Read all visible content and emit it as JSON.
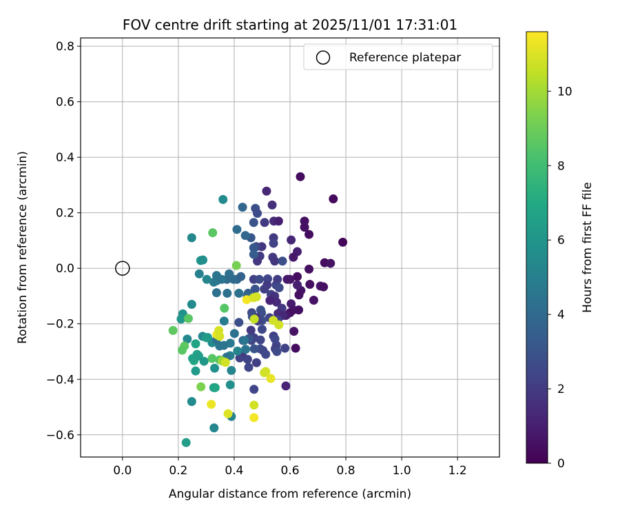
{
  "chart_data": {
    "type": "scatter",
    "title": "FOV centre drift starting at 2025/11/01 17:31:01",
    "xlabel": "Angular distance from reference (arcmin)",
    "ylabel": "Rotation from reference (arcmin)",
    "xlim": [
      -0.15,
      1.35
    ],
    "ylim": [
      -0.68,
      0.83
    ],
    "xticks": [
      0.0,
      0.2,
      0.4,
      0.6,
      0.8,
      1.0,
      1.2
    ],
    "xtick_labels": [
      "0.0",
      "0.2",
      "0.4",
      "0.6",
      "0.8",
      "1.0",
      "1.2"
    ],
    "yticks": [
      -0.6,
      -0.4,
      -0.2,
      0.0,
      0.2,
      0.4,
      0.6,
      0.8
    ],
    "ytick_labels": [
      "−0.6",
      "−0.4",
      "−0.2",
      "0.0",
      "0.2",
      "0.4",
      "0.6",
      "0.8"
    ],
    "grid": true,
    "legend": {
      "position": "top-right",
      "label": "Reference platepar"
    },
    "reference": {
      "x": 0.0,
      "y": 0.0
    },
    "colorbar": {
      "label": "Hours from first FF file",
      "range": [
        0,
        11.6
      ],
      "ticks": [
        0,
        2,
        4,
        6,
        8,
        10
      ],
      "tick_labels": [
        "0",
        "2",
        "4",
        "6",
        "8",
        "10"
      ],
      "colormap": "viridis"
    },
    "points": [
      [
        0.637,
        0.33,
        0.4
      ],
      [
        0.755,
        0.25,
        0.3
      ],
      [
        0.652,
        0.17,
        0.5
      ],
      [
        0.652,
        0.148,
        0.5
      ],
      [
        0.668,
        0.122,
        0.4
      ],
      [
        0.789,
        0.094,
        0.2
      ],
      [
        0.724,
        0.02,
        0.4
      ],
      [
        0.745,
        0.018,
        0.6
      ],
      [
        0.668,
        -0.003,
        0.5
      ],
      [
        0.626,
        0.06,
        1.0
      ],
      [
        0.612,
        0.04,
        0.8
      ],
      [
        0.604,
        0.102,
        1.3
      ],
      [
        0.709,
        -0.064,
        0.7
      ],
      [
        0.72,
        -0.067,
        0.5
      ],
      [
        0.671,
        -0.058,
        0.5
      ],
      [
        0.685,
        -0.115,
        0.6
      ],
      [
        0.639,
        -0.08,
        0.6
      ],
      [
        0.632,
        -0.096,
        0.5
      ],
      [
        0.626,
        -0.03,
        0.4
      ],
      [
        0.6,
        -0.04,
        0.7
      ],
      [
        0.626,
        -0.06,
        1.0
      ],
      [
        0.59,
        -0.04,
        0.8
      ],
      [
        0.604,
        -0.128,
        0.9
      ],
      [
        0.612,
        -0.15,
        0.7
      ],
      [
        0.631,
        -0.15,
        0.5
      ],
      [
        0.6,
        -0.16,
        0.5
      ],
      [
        0.585,
        -0.17,
        0.8
      ],
      [
        0.62,
        -0.288,
        0.4
      ],
      [
        0.614,
        -0.227,
        0.6
      ],
      [
        0.585,
        -0.424,
        1.2
      ],
      [
        0.516,
        0.278,
        1.3
      ],
      [
        0.536,
        0.228,
        1.6
      ],
      [
        0.542,
        0.17,
        1.4
      ],
      [
        0.559,
        0.17,
        1.0
      ],
      [
        0.509,
        0.165,
        2.0
      ],
      [
        0.541,
        0.11,
        2.0
      ],
      [
        0.541,
        0.09,
        2.3
      ],
      [
        0.499,
        0.078,
        1.8
      ],
      [
        0.479,
        0.078,
        2.4
      ],
      [
        0.492,
        0.044,
        2.0
      ],
      [
        0.483,
        0.026,
        1.9
      ],
      [
        0.538,
        0.04,
        2.0
      ],
      [
        0.545,
        0.026,
        1.8
      ],
      [
        0.573,
        0.026,
        2.8
      ],
      [
        0.52,
        -0.038,
        2.4
      ],
      [
        0.518,
        -0.06,
        2.0
      ],
      [
        0.508,
        -0.075,
        2.1
      ],
      [
        0.532,
        -0.094,
        2.2
      ],
      [
        0.55,
        -0.06,
        2.4
      ],
      [
        0.555,
        -0.04,
        2.1
      ],
      [
        0.561,
        -0.07,
        2.6
      ],
      [
        0.545,
        -0.1,
        1.7
      ],
      [
        0.552,
        -0.122,
        1.4
      ],
      [
        0.528,
        -0.116,
        1.2
      ],
      [
        0.571,
        -0.144,
        1.9
      ],
      [
        0.557,
        -0.163,
        1.5
      ],
      [
        0.575,
        -0.17,
        1.3
      ],
      [
        0.556,
        -0.186,
        2.3
      ],
      [
        0.527,
        -0.178,
        2.3
      ],
      [
        0.495,
        -0.15,
        3.0
      ],
      [
        0.498,
        -0.161,
        2.8
      ],
      [
        0.5,
        -0.188,
        2.7
      ],
      [
        0.5,
        -0.22,
        2.5
      ],
      [
        0.478,
        -0.178,
        1.5
      ],
      [
        0.485,
        -0.19,
        2.2
      ],
      [
        0.463,
        -0.16,
        2.6
      ],
      [
        0.465,
        -0.174,
        2.9
      ],
      [
        0.47,
        -0.18,
        2.2
      ],
      [
        0.46,
        -0.223,
        2.0
      ],
      [
        0.471,
        -0.25,
        2.2
      ],
      [
        0.462,
        -0.26,
        2.4
      ],
      [
        0.494,
        -0.258,
        2.4
      ],
      [
        0.541,
        -0.244,
        2.1
      ],
      [
        0.546,
        -0.254,
        2.5
      ],
      [
        0.551,
        -0.277,
        2.4
      ],
      [
        0.547,
        -0.29,
        2.2
      ],
      [
        0.553,
        -0.3,
        2.6
      ],
      [
        0.582,
        -0.288,
        2.3
      ],
      [
        0.513,
        -0.31,
        2.5
      ],
      [
        0.493,
        -0.29,
        2.7
      ],
      [
        0.503,
        -0.296,
        2.5
      ],
      [
        0.472,
        -0.29,
        3.0
      ],
      [
        0.48,
        -0.34,
        2.1
      ],
      [
        0.448,
        -0.328,
        2.3
      ],
      [
        0.428,
        -0.31,
        1.9
      ],
      [
        0.42,
        -0.323,
        2.2
      ],
      [
        0.452,
        -0.357,
        2.4
      ],
      [
        0.471,
        -0.436,
        2.4
      ],
      [
        0.453,
        -0.253,
        3.1
      ],
      [
        0.417,
        -0.195,
        2.8
      ],
      [
        0.432,
        -0.26,
        3.0
      ],
      [
        0.47,
        -0.04,
        2.2
      ],
      [
        0.49,
        -0.04,
        2.6
      ],
      [
        0.475,
        -0.075,
        2.9
      ],
      [
        0.46,
        0.11,
        3.2
      ],
      [
        0.47,
        0.165,
        3.0
      ],
      [
        0.476,
        0.216,
        2.8
      ],
      [
        0.483,
        0.198,
        2.7
      ],
      [
        0.47,
        0.074,
        3.2
      ],
      [
        0.47,
        0.05,
        3.4
      ],
      [
        0.43,
        0.22,
        3.8
      ],
      [
        0.44,
        0.118,
        3.8
      ],
      [
        0.41,
        0.14,
        4.1
      ],
      [
        0.45,
        -0.09,
        3.6
      ],
      [
        0.447,
        -0.1,
        3.8
      ],
      [
        0.417,
        -0.09,
        4.3
      ],
      [
        0.41,
        -0.04,
        3.9
      ],
      [
        0.398,
        -0.04,
        4.0
      ],
      [
        0.424,
        -0.03,
        3.6
      ],
      [
        0.382,
        -0.02,
        4.2
      ],
      [
        0.374,
        -0.04,
        4.1
      ],
      [
        0.375,
        -0.09,
        4.3
      ],
      [
        0.355,
        -0.04,
        4.5
      ],
      [
        0.337,
        -0.045,
        4.3
      ],
      [
        0.327,
        -0.05,
        4.7
      ],
      [
        0.337,
        -0.026,
        4.4
      ],
      [
        0.302,
        -0.04,
        5.3
      ],
      [
        0.275,
        -0.02,
        5.0
      ],
      [
        0.337,
        -0.088,
        4.3
      ],
      [
        0.36,
        0.248,
        5.5
      ],
      [
        0.248,
        0.11,
        5.4
      ],
      [
        0.28,
        0.028,
        6.0
      ],
      [
        0.288,
        0.03,
        5.7
      ],
      [
        0.364,
        -0.19,
        4.8
      ],
      [
        0.401,
        -0.235,
        4.3
      ],
      [
        0.386,
        -0.27,
        4.7
      ],
      [
        0.363,
        -0.278,
        4.4
      ],
      [
        0.348,
        -0.28,
        4.5
      ],
      [
        0.321,
        -0.268,
        5.5
      ],
      [
        0.337,
        -0.257,
        4.3
      ],
      [
        0.305,
        -0.249,
        6.2
      ],
      [
        0.287,
        -0.245,
        5.4
      ],
      [
        0.436,
        -0.26,
        4.5
      ],
      [
        0.441,
        -0.292,
        4.5
      ],
      [
        0.412,
        -0.298,
        5.2
      ],
      [
        0.385,
        -0.315,
        5.0
      ],
      [
        0.373,
        -0.32,
        4.3
      ],
      [
        0.33,
        -0.36,
        5.8
      ],
      [
        0.39,
        -0.368,
        5.2
      ],
      [
        0.386,
        -0.42,
        5.7
      ],
      [
        0.39,
        -0.534,
        5.2
      ],
      [
        0.328,
        -0.575,
        5.3
      ],
      [
        0.228,
        -0.628,
        6.4
      ],
      [
        0.248,
        -0.48,
        5.5
      ],
      [
        0.256,
        -0.333,
        7.0
      ],
      [
        0.251,
        -0.325,
        6.6
      ],
      [
        0.262,
        -0.37,
        6.3
      ],
      [
        0.262,
        -0.272,
        6.7
      ],
      [
        0.267,
        -0.31,
        6.7
      ],
      [
        0.273,
        -0.316,
        6.4
      ],
      [
        0.232,
        -0.255,
        5.4
      ],
      [
        0.216,
        -0.164,
        5.8
      ],
      [
        0.21,
        -0.183,
        6.1
      ],
      [
        0.248,
        -0.13,
        5.5
      ],
      [
        0.292,
        -0.335,
        6.1
      ],
      [
        0.327,
        -0.43,
        6.3
      ],
      [
        0.332,
        -0.43,
        6.8
      ],
      [
        0.301,
        -0.25,
        6.3
      ],
      [
        0.236,
        -0.181,
        8.6
      ],
      [
        0.222,
        -0.28,
        8.7
      ],
      [
        0.214,
        -0.295,
        8.6
      ],
      [
        0.181,
        -0.224,
        8.7
      ],
      [
        0.281,
        -0.427,
        9.3
      ],
      [
        0.321,
        -0.325,
        8.5
      ],
      [
        0.348,
        -0.33,
        8.5
      ],
      [
        0.357,
        -0.334,
        9.9
      ],
      [
        0.365,
        -0.144,
        8.5
      ],
      [
        0.323,
        0.128,
        8.6
      ],
      [
        0.408,
        0.01,
        9.2
      ],
      [
        0.369,
        -0.339,
        10.8
      ],
      [
        0.318,
        -0.49,
        11.3
      ],
      [
        0.378,
        -0.524,
        11.0
      ],
      [
        0.471,
        -0.493,
        10.8
      ],
      [
        0.471,
        -0.538,
        11.4
      ],
      [
        0.338,
        -0.239,
        11.3
      ],
      [
        0.345,
        -0.224,
        10.9
      ],
      [
        0.348,
        -0.245,
        10.9
      ],
      [
        0.445,
        -0.113,
        11.4
      ],
      [
        0.469,
        -0.106,
        10.9
      ],
      [
        0.48,
        -0.103,
        10.9
      ],
      [
        0.472,
        -0.183,
        10.6
      ],
      [
        0.54,
        -0.188,
        10.8
      ],
      [
        0.56,
        -0.204,
        10.8
      ],
      [
        0.513,
        -0.372,
        10.8
      ],
      [
        0.508,
        -0.376,
        10.8
      ],
      [
        0.531,
        -0.397,
        11.2
      ]
    ]
  }
}
